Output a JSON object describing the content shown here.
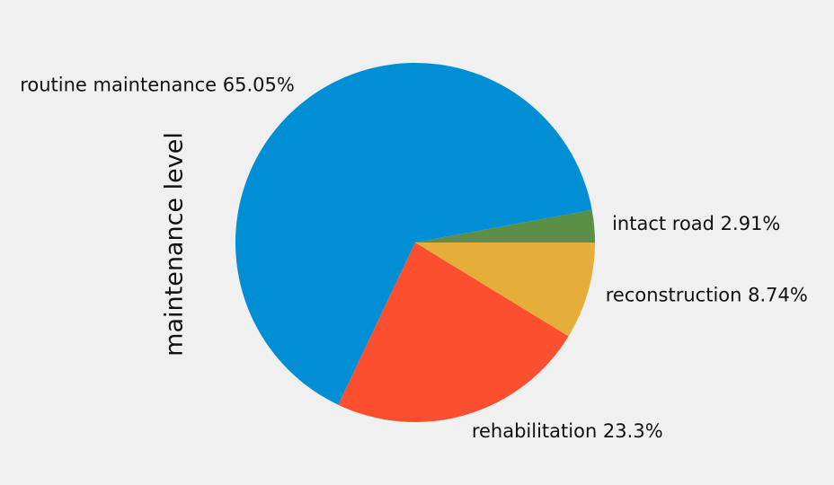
{
  "chart_data": {
    "type": "pie",
    "title": "",
    "ylabel": "maintenance level",
    "start_angle_deg": 0,
    "direction": "counterclockwise",
    "slices": [
      {
        "label": "intact road",
        "value": 2.91,
        "label_text": "intact road 2.91%",
        "color": "#5b8f47"
      },
      {
        "label": "routine maintenance",
        "value": 65.05,
        "label_text": "routine maintenance 65.05%",
        "color": "#008fd5"
      },
      {
        "label": "rehabilitation",
        "value": 23.3,
        "label_text": "rehabilitation 23.3%",
        "color": "#fc4f30"
      },
      {
        "label": "reconstruction",
        "value": 8.74,
        "label_text": "reconstruction 8.74%",
        "color": "#e5ae38"
      }
    ]
  }
}
